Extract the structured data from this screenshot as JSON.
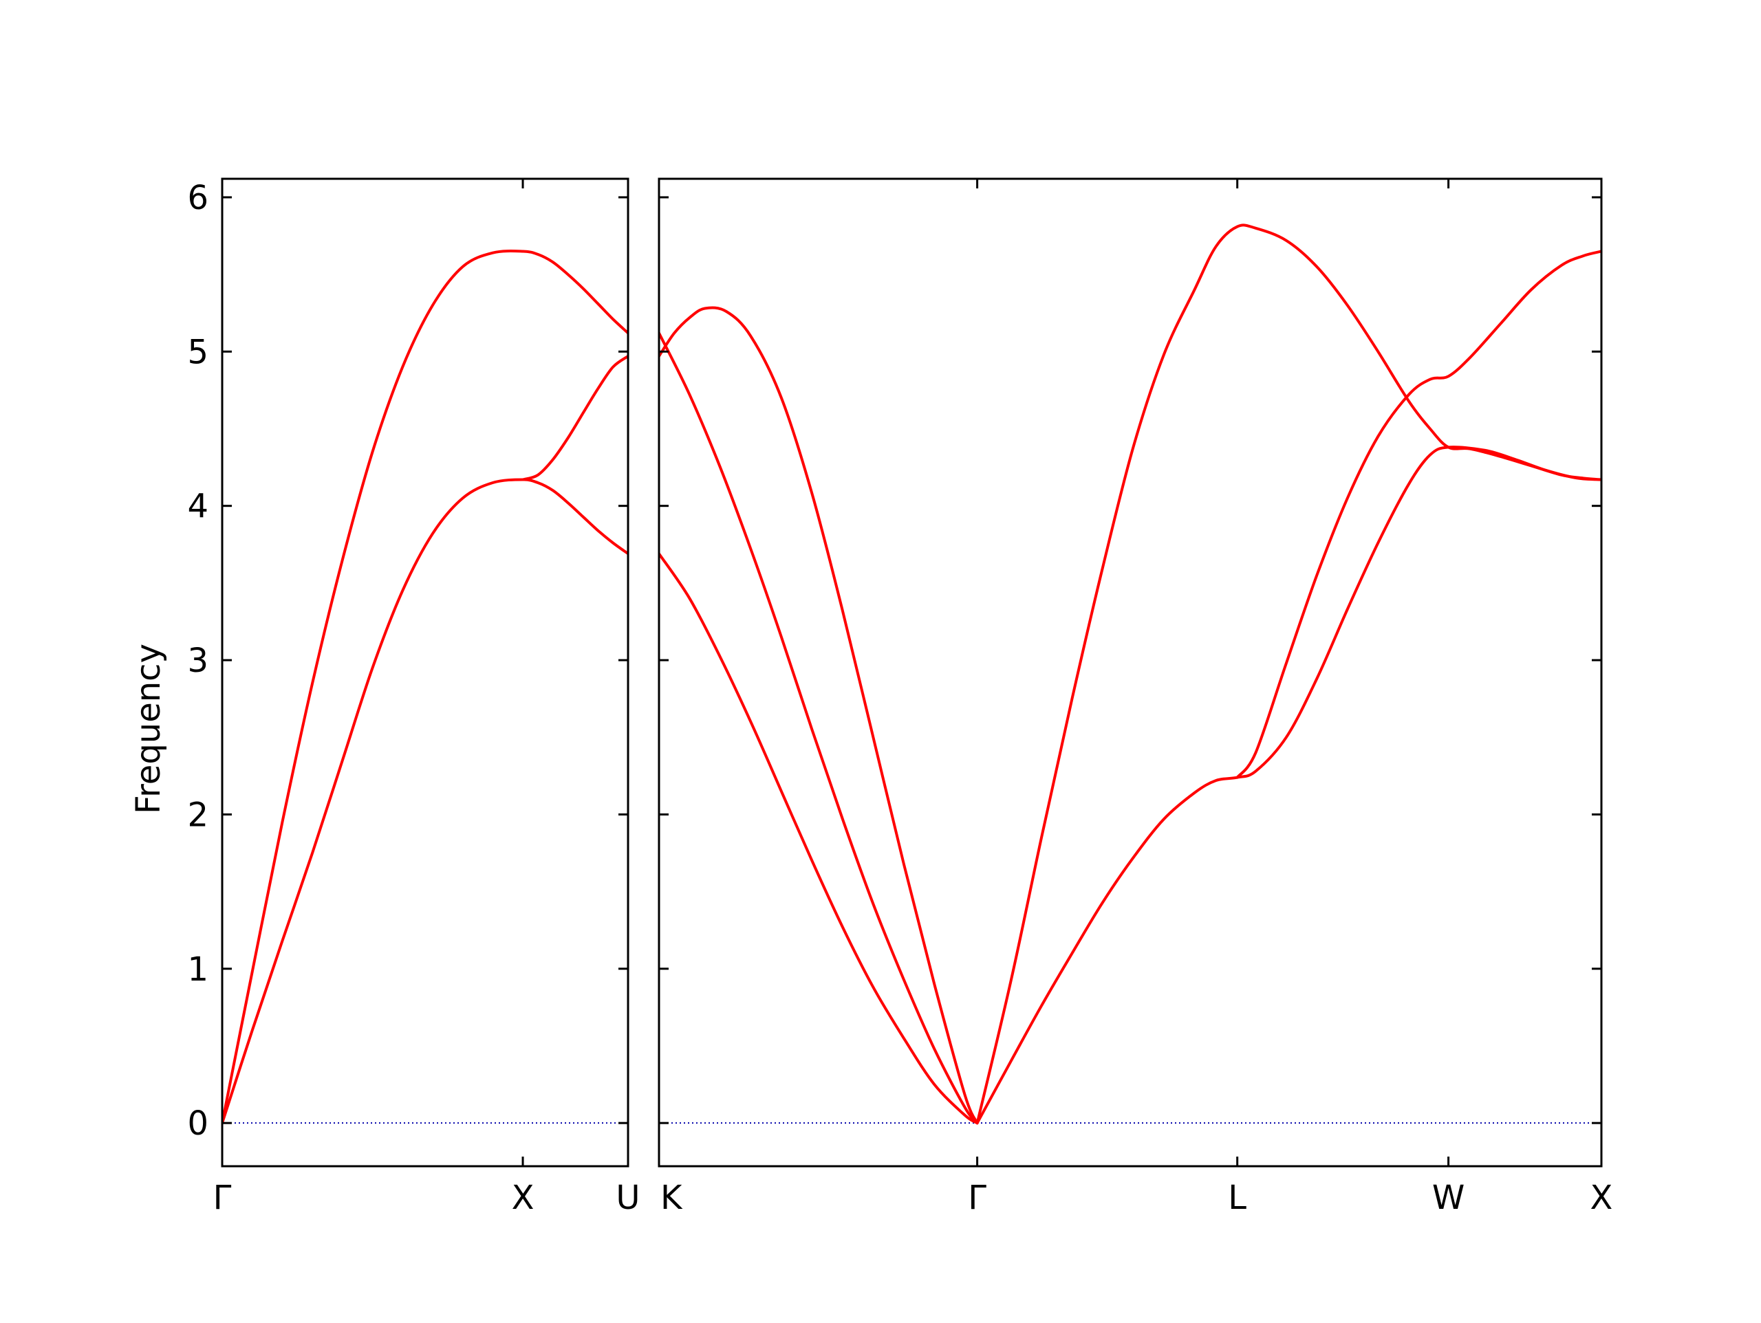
{
  "chart_data": {
    "type": "line",
    "title": "",
    "ylabel": "Frequency",
    "ylim": [
      -0.28,
      6.12
    ],
    "yticks": [
      0,
      1,
      2,
      3,
      4,
      5,
      6
    ],
    "grid": false,
    "legend": "none",
    "colors": {
      "band": "#ff0000",
      "zero_line": "#0000aa",
      "axes": "#000000"
    },
    "panels": [
      {
        "id": "panel-gamma-x-u",
        "xlim": [
          0,
          1.35
        ],
        "ticks": [
          {
            "pos": 0,
            "label": "Γ"
          },
          {
            "pos": 1.0,
            "label": "X"
          },
          {
            "pos": 1.35,
            "label": "U"
          }
        ],
        "series": [
          {
            "x": [
              0,
              0.1,
              0.2,
              0.3,
              0.4,
              0.5,
              0.6,
              0.7,
              0.8,
              0.9,
              1.0,
              1.05,
              1.1,
              1.15,
              1.2,
              1.25,
              1.3,
              1.35
            ],
            "y": [
              0,
              0.6,
              1.18,
              1.75,
              2.35,
              2.95,
              3.45,
              3.82,
              4.05,
              4.15,
              4.17,
              4.15,
              4.1,
              4.02,
              3.93,
              3.84,
              3.76,
              3.69
            ]
          },
          {
            "x": [
              0,
              0.1,
              0.2,
              0.3,
              0.4,
              0.5,
              0.6,
              0.7,
              0.8,
              0.9,
              1.0,
              1.05,
              1.1,
              1.15,
              1.2,
              1.25,
              1.3,
              1.35
            ],
            "y": [
              0,
              0.98,
              1.95,
              2.85,
              3.65,
              4.35,
              4.9,
              5.3,
              5.55,
              5.64,
              5.65,
              5.63,
              5.58,
              5.5,
              5.41,
              5.31,
              5.21,
              5.12
            ]
          },
          {
            "x": [
              1.0,
              1.05,
              1.1,
              1.15,
              1.2,
              1.25,
              1.3,
              1.35
            ],
            "y": [
              4.17,
              4.2,
              4.3,
              4.44,
              4.6,
              4.76,
              4.9,
              4.97
            ]
          }
        ]
      },
      {
        "id": "panel-k-gamma-l-w-x",
        "xlim": [
          0,
          3.08
        ],
        "ticks": [
          {
            "pos": 0,
            "label": "K"
          },
          {
            "pos": 1.04,
            "label": "Γ"
          },
          {
            "pos": 1.89,
            "label": "L"
          },
          {
            "pos": 2.58,
            "label": "W"
          },
          {
            "pos": 3.08,
            "label": "X"
          }
        ],
        "series": [
          {
            "x": [
              0,
              0.1,
              0.2,
              0.3,
              0.4,
              0.5,
              0.6,
              0.7,
              0.8,
              0.9,
              1.0,
              1.04
            ],
            "y": [
              3.69,
              3.4,
              3.02,
              2.6,
              2.15,
              1.7,
              1.27,
              0.88,
              0.55,
              0.25,
              0.05,
              0
            ]
          },
          {
            "x": [
              0,
              0.1,
              0.2,
              0.3,
              0.4,
              0.5,
              0.6,
              0.7,
              0.8,
              0.9,
              1.0,
              1.04
            ],
            "y": [
              5.12,
              4.72,
              4.25,
              3.72,
              3.15,
              2.55,
              1.97,
              1.42,
              0.93,
              0.48,
              0.1,
              0
            ]
          },
          {
            "x": [
              0,
              0.05,
              0.1,
              0.15,
              0.22,
              0.3,
              0.4,
              0.5,
              0.6,
              0.7,
              0.8,
              0.9,
              1.0,
              1.04
            ],
            "y": [
              4.97,
              5.12,
              5.22,
              5.28,
              5.26,
              5.1,
              4.7,
              4.08,
              3.32,
              2.5,
              1.68,
              0.9,
              0.18,
              0
            ]
          },
          {
            "x": [
              1.04,
              1.15,
              1.25,
              1.35,
              1.45,
              1.55,
              1.65,
              1.75,
              1.82,
              1.89,
              1.95,
              2.05,
              2.15,
              2.25,
              2.35,
              2.45,
              2.52,
              2.58,
              2.7,
              2.8,
              2.9,
              3.0,
              3.08
            ],
            "y": [
              0,
              0.4,
              0.76,
              1.1,
              1.43,
              1.72,
              1.97,
              2.14,
              2.22,
              2.24,
              2.28,
              2.5,
              2.88,
              3.33,
              3.76,
              4.14,
              4.33,
              4.38,
              4.36,
              4.3,
              4.23,
              4.18,
              4.17
            ]
          },
          {
            "x": [
              1.04,
              1.15,
              1.25,
              1.35,
              1.45,
              1.55,
              1.65,
              1.75,
              1.82,
              1.89,
              1.95,
              2.05,
              2.15,
              2.25,
              2.35,
              2.45,
              2.52,
              2.58,
              2.65,
              2.75,
              2.85,
              2.95,
              3.02,
              3.08
            ],
            "y": [
              0,
              0.92,
              1.85,
              2.75,
              3.6,
              4.38,
              4.98,
              5.4,
              5.68,
              5.81,
              5.8,
              5.72,
              5.55,
              5.3,
              5.0,
              4.68,
              4.5,
              4.38,
              4.37,
              4.32,
              4.26,
              4.2,
              4.18,
              4.17
            ]
          },
          {
            "x": [
              1.89,
              1.95,
              2.05,
              2.15,
              2.25,
              2.35,
              2.45,
              2.52,
              2.58,
              2.65,
              2.75,
              2.85,
              2.95,
              3.02,
              3.08
            ],
            "y": [
              2.24,
              2.4,
              2.98,
              3.55,
              4.05,
              4.45,
              4.72,
              4.82,
              4.84,
              4.96,
              5.18,
              5.4,
              5.56,
              5.62,
              5.65
            ]
          }
        ]
      }
    ]
  }
}
